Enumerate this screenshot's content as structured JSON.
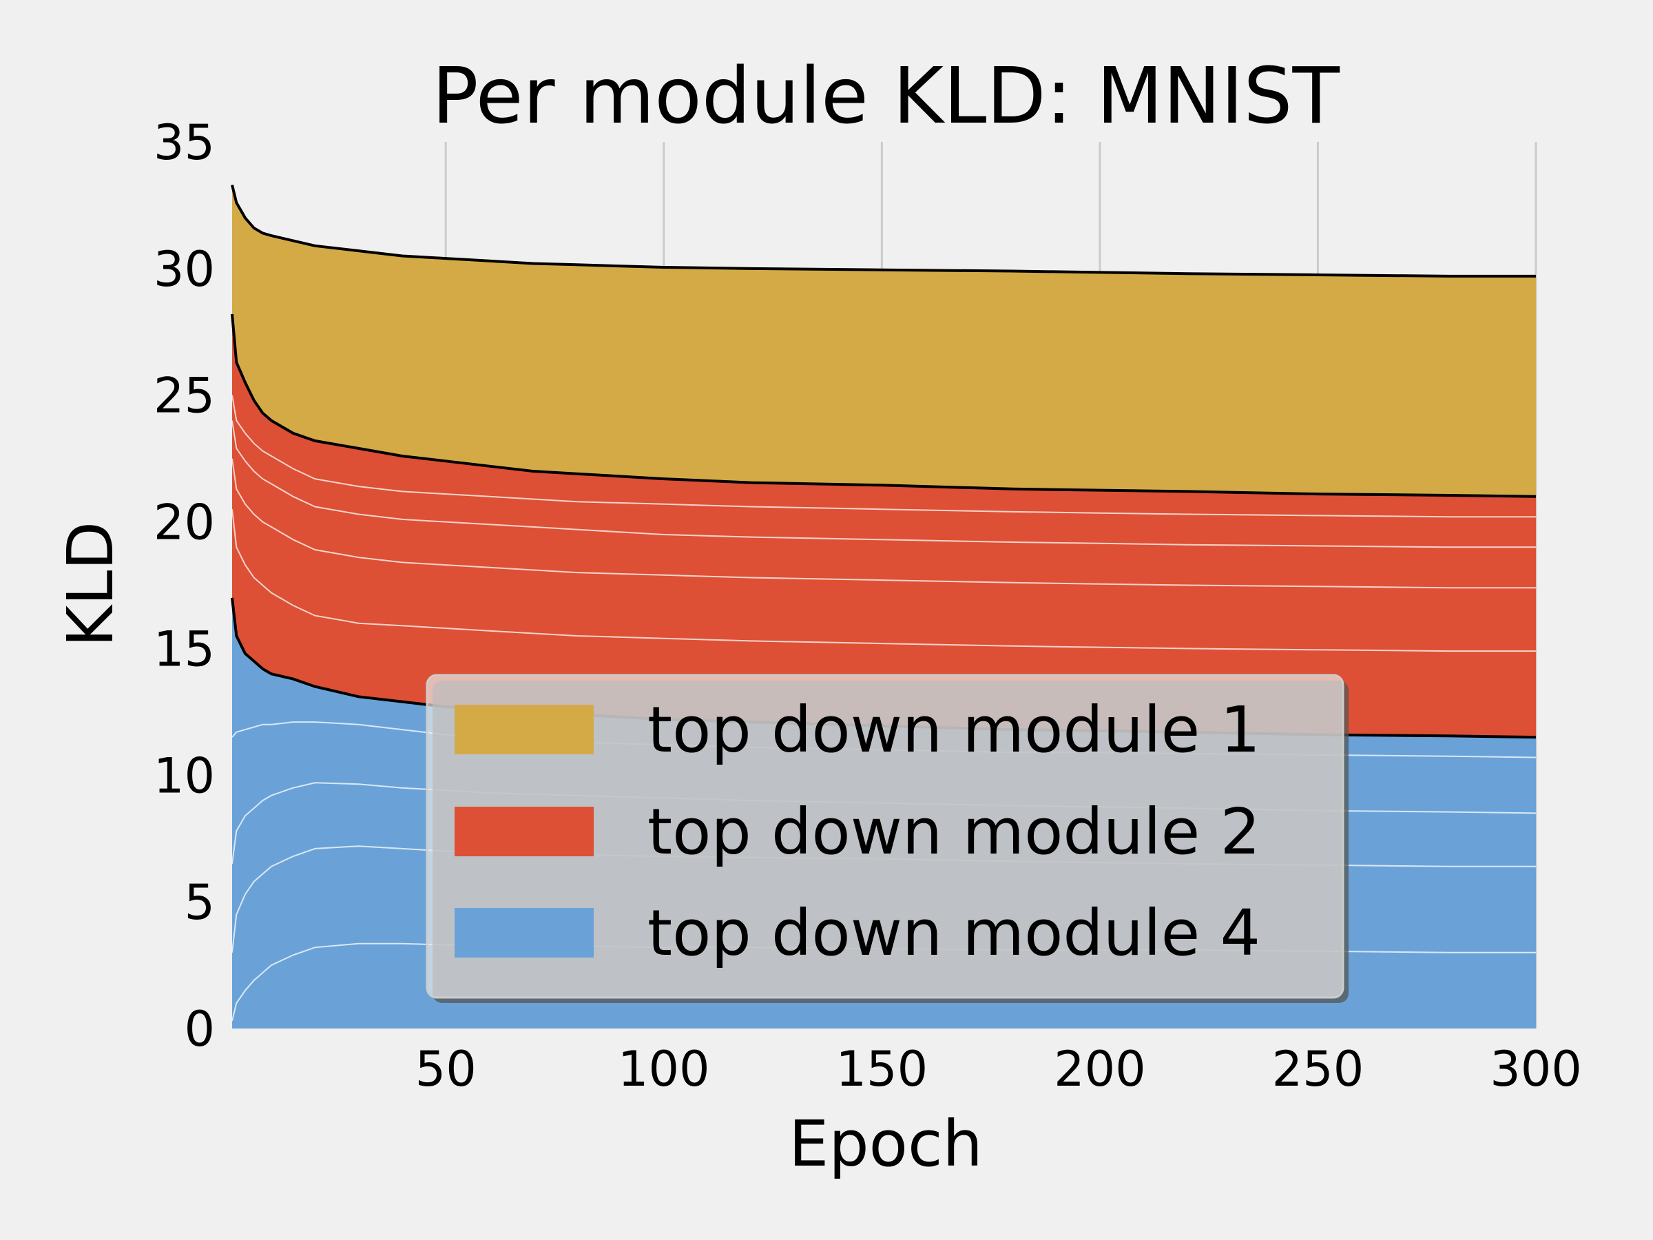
{
  "chart_data": {
    "type": "area",
    "stacked": true,
    "title": "Per module KLD: MNIST",
    "xlabel": "Epoch",
    "ylabel": "KLD",
    "xlim": [
      1,
      300
    ],
    "ylim": [
      0,
      35
    ],
    "xticks": [
      50,
      100,
      150,
      200,
      250,
      300
    ],
    "yticks": [
      0,
      5,
      10,
      15,
      20,
      25,
      30,
      35
    ],
    "x_grid": true,
    "legend_position": "bottom-center",
    "x": [
      1,
      2,
      4,
      6,
      8,
      10,
      15,
      20,
      30,
      40,
      50,
      60,
      70,
      80,
      100,
      120,
      150,
      180,
      200,
      220,
      250,
      280,
      300
    ],
    "series": [
      {
        "name": "top down module 4",
        "color": "#6aa2d8",
        "inner_lines": [
          [
            0.3,
            1.0,
            1.5,
            1.9,
            2.2,
            2.5,
            2.9,
            3.2,
            3.35,
            3.35,
            3.3,
            3.3,
            3.3,
            3.25,
            3.2,
            3.2,
            3.15,
            3.1,
            3.1,
            3.1,
            3.05,
            3.0,
            3.0
          ],
          [
            3.0,
            4.5,
            5.3,
            5.8,
            6.1,
            6.4,
            6.8,
            7.1,
            7.2,
            7.1,
            7.0,
            6.95,
            6.9,
            6.85,
            6.8,
            6.75,
            6.7,
            6.6,
            6.55,
            6.5,
            6.45,
            6.4,
            6.4
          ],
          [
            6.5,
            7.8,
            8.4,
            8.7,
            9.0,
            9.2,
            9.5,
            9.7,
            9.65,
            9.5,
            9.4,
            9.3,
            9.25,
            9.2,
            9.1,
            9.0,
            8.9,
            8.8,
            8.75,
            8.7,
            8.6,
            8.55,
            8.5
          ],
          [
            11.5,
            11.7,
            11.8,
            11.9,
            12.0,
            12.0,
            12.1,
            12.1,
            12.0,
            11.8,
            11.6,
            11.5,
            11.4,
            11.3,
            11.2,
            11.1,
            11.0,
            10.9,
            10.9,
            10.85,
            10.8,
            10.75,
            10.7
          ]
        ],
        "top": [
          17.0,
          15.5,
          14.8,
          14.5,
          14.2,
          14.0,
          13.8,
          13.5,
          13.1,
          12.9,
          12.7,
          12.6,
          12.5,
          12.4,
          12.2,
          12.1,
          11.95,
          11.8,
          11.75,
          11.7,
          11.6,
          11.55,
          11.5
        ]
      },
      {
        "name": "top down module 2",
        "color": "#dd5035",
        "inner_lines": [
          [
            20.5,
            19.0,
            18.3,
            17.8,
            17.5,
            17.2,
            16.7,
            16.3,
            16.0,
            15.9,
            15.8,
            15.7,
            15.6,
            15.5,
            15.4,
            15.3,
            15.2,
            15.1,
            15.05,
            15.0,
            14.95,
            14.9,
            14.9
          ],
          [
            22.5,
            21.3,
            20.7,
            20.3,
            20.0,
            19.8,
            19.3,
            18.9,
            18.6,
            18.4,
            18.3,
            18.2,
            18.1,
            18.0,
            17.9,
            17.8,
            17.7,
            17.6,
            17.55,
            17.5,
            17.45,
            17.4,
            17.4
          ],
          [
            24.0,
            22.9,
            22.4,
            22.0,
            21.7,
            21.5,
            21.0,
            20.6,
            20.3,
            20.1,
            20.0,
            19.9,
            19.8,
            19.7,
            19.5,
            19.4,
            19.3,
            19.2,
            19.15,
            19.1,
            19.05,
            19.0,
            19.0
          ],
          [
            25.0,
            24.0,
            23.5,
            23.1,
            22.8,
            22.6,
            22.1,
            21.7,
            21.4,
            21.2,
            21.1,
            21.0,
            20.9,
            20.8,
            20.7,
            20.6,
            20.5,
            20.4,
            20.35,
            20.3,
            20.25,
            20.2,
            20.2
          ]
        ],
        "top": [
          28.2,
          26.3,
          25.5,
          24.8,
          24.3,
          24.0,
          23.5,
          23.2,
          22.9,
          22.6,
          22.4,
          22.2,
          22.0,
          21.9,
          21.7,
          21.55,
          21.45,
          21.3,
          21.25,
          21.2,
          21.1,
          21.05,
          21.0
        ]
      },
      {
        "name": "top down module 1",
        "color": "#d4aa47",
        "inner_lines": [],
        "top": [
          33.3,
          32.6,
          32.0,
          31.6,
          31.4,
          31.3,
          31.1,
          30.9,
          30.7,
          30.5,
          30.4,
          30.3,
          30.2,
          30.15,
          30.05,
          30.0,
          29.95,
          29.9,
          29.85,
          29.8,
          29.75,
          29.7,
          29.7
        ]
      }
    ]
  }
}
